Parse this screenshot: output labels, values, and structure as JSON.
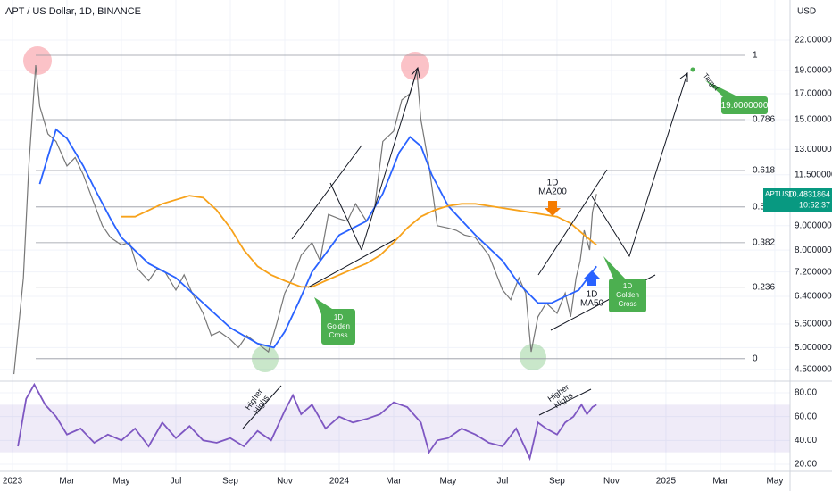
{
  "header": {
    "title": "APT / US Dollar, 1D, BINANCE",
    "currency": "USD"
  },
  "chart_data": [
    {
      "type": "line",
      "log_scale": true,
      "grid": true,
      "xlim": [
        -0.46,
        28.56
      ],
      "ylim": [
        4.29,
        26.7
      ],
      "xticks": [
        {
          "value": 0,
          "label": "2023"
        },
        {
          "value": 2,
          "label": "Mar"
        },
        {
          "value": 4,
          "label": "May"
        },
        {
          "value": 6,
          "label": "Jul"
        },
        {
          "value": 8,
          "label": "Sep"
        },
        {
          "value": 10,
          "label": "Nov"
        },
        {
          "value": 12,
          "label": "2024"
        },
        {
          "value": 14,
          "label": "Mar"
        },
        {
          "value": 16,
          "label": "May"
        },
        {
          "value": 18,
          "label": "Jul"
        },
        {
          "value": 20,
          "label": "Sep"
        },
        {
          "value": 22,
          "label": "Nov"
        },
        {
          "value": 24,
          "label": "2025"
        },
        {
          "value": 26,
          "label": "Mar"
        },
        {
          "value": 28,
          "label": "May"
        }
      ],
      "yticks": [
        {
          "value": 22,
          "label": "22.0000000"
        },
        {
          "value": 19,
          "label": "19.0000000"
        },
        {
          "value": 17,
          "label": "17.0000000"
        },
        {
          "value": 15,
          "label": "15.0000000"
        },
        {
          "value": 13,
          "label": "13.0000000"
        },
        {
          "value": 11.5,
          "label": "11.5000000"
        },
        {
          "value": 9,
          "label": "9.0000000"
        },
        {
          "value": 8,
          "label": "8.0000000"
        },
        {
          "value": 7.2,
          "label": "7.2000000"
        },
        {
          "value": 6.4,
          "label": "6.4000000"
        },
        {
          "value": 5.6,
          "label": "5.6000000"
        },
        {
          "value": 5,
          "label": "5.0000000"
        },
        {
          "value": 4.5,
          "label": "4.5000000"
        }
      ],
      "series": [
        {
          "name": "APTUSD",
          "color": "#777777",
          "x": [
            0.05,
            0.4,
            0.6,
            0.85,
            1.0,
            1.3,
            1.6,
            2.0,
            2.3,
            2.6,
            3.0,
            3.3,
            3.6,
            4.0,
            4.3,
            4.6,
            5.0,
            5.3,
            5.6,
            6.0,
            6.3,
            6.6,
            7.0,
            7.3,
            7.6,
            8.0,
            8.3,
            8.6,
            9.0,
            9.4,
            9.7,
            10.0,
            10.3,
            10.6,
            11.0,
            11.3,
            11.6,
            12.0,
            12.3,
            12.6,
            13.0,
            13.3,
            13.6,
            14.0,
            14.3,
            14.6,
            14.85,
            15.0,
            15.3,
            15.6,
            16.0,
            16.3,
            16.6,
            17.0,
            17.5,
            18.0,
            18.3,
            18.6,
            18.85,
            19.05,
            19.3,
            19.6,
            20.0,
            20.3,
            20.5,
            20.7,
            20.85,
            21.0,
            21.2,
            21.3,
            21.45
          ],
          "values": [
            4.4,
            7,
            12,
            19.5,
            16,
            14,
            13.5,
            12,
            12.5,
            11.5,
            10,
            9,
            8.5,
            8.2,
            8.3,
            7.3,
            6.9,
            7.3,
            7.2,
            6.6,
            7.1,
            6.5,
            5.9,
            5.3,
            5.4,
            5.2,
            5.0,
            5.3,
            5.1,
            4.9,
            5.6,
            6.5,
            7.0,
            7.8,
            8.3,
            7.6,
            9.5,
            9.3,
            9.2,
            10.0,
            9.2,
            9.8,
            13.5,
            14.2,
            16.5,
            17,
            19,
            15,
            12,
            9.0,
            8.9,
            8.8,
            8.6,
            8.5,
            7.8,
            6.6,
            6.3,
            7.0,
            6.5,
            4.9,
            5.8,
            6.2,
            5.9,
            6.5,
            5.8,
            7.0,
            7.6,
            8.8,
            8.0,
            9.6,
            10.4831864
          ]
        },
        {
          "color": "#2962ff",
          "x": [
            1.0,
            1.6,
            2.0,
            2.6,
            3.0,
            3.6,
            4.0,
            5.0,
            6.0,
            7.0,
            8.0,
            9.0,
            9.6,
            10.0,
            10.5,
            11.0,
            11.6,
            12.0,
            13.0,
            13.6,
            14.2,
            14.6,
            15.0,
            15.4,
            16.0,
            16.6,
            17.0,
            18.0,
            18.6,
            19.3,
            19.8,
            20.3,
            20.8,
            21.45
          ],
          "values": [
            11,
            14.3,
            13.7,
            12.0,
            10.8,
            9.3,
            8.5,
            7.5,
            7.0,
            6.2,
            5.5,
            5.1,
            5.0,
            5.4,
            6.2,
            7.2,
            8.0,
            8.6,
            9.2,
            10.5,
            12.8,
            13.8,
            13.2,
            11.5,
            9.9,
            9.1,
            8.6,
            7.6,
            6.8,
            6.2,
            6.2,
            6.4,
            6.6,
            7.4
          ]
        },
        {
          "color": "#f7a21b",
          "x": [
            4.0,
            4.5,
            5.5,
            6.5,
            7.0,
            7.5,
            8.0,
            8.5,
            9.0,
            9.5,
            10.0,
            10.6,
            11.0,
            11.5,
            12.0,
            12.5,
            13.0,
            13.5,
            14.0,
            14.5,
            15.0,
            15.5,
            16.0,
            16.5,
            17.0,
            17.5,
            18.0,
            19.0,
            20.0,
            20.5,
            21.0,
            21.45
          ],
          "values": [
            9.4,
            9.4,
            10.0,
            10.4,
            10.3,
            9.7,
            8.9,
            8.0,
            7.4,
            7.1,
            6.9,
            6.7,
            6.7,
            6.9,
            7.1,
            7.3,
            7.5,
            7.8,
            8.3,
            8.9,
            9.4,
            9.7,
            9.9,
            10.0,
            10.0,
            9.9,
            9.8,
            9.6,
            9.4,
            9.1,
            8.6,
            8.2
          ]
        }
      ],
      "fib_levels": [
        {
          "level": 1,
          "price": 20.45
        },
        {
          "level": 0.786,
          "price": 15.0
        },
        {
          "level": 0.618,
          "price": 11.74
        },
        {
          "level": 0.5,
          "price": 9.85
        },
        {
          "level": 0.382,
          "price": 8.29
        },
        {
          "level": 0.236,
          "price": 6.69
        },
        {
          "level": 0,
          "price": 4.74
        }
      ],
      "last_price_time": "10:52:37",
      "target": {
        "value": 19,
        "label": "19.0000000",
        "text": "Target"
      },
      "golden_cross_1": [
        "1D",
        "Golden",
        "Cross"
      ],
      "golden_cross_2": [
        "1D",
        "Golden",
        "Cross"
      ],
      "ma200_label": [
        "1D",
        "MA200"
      ],
      "ma50_label": [
        "1D",
        "MA50"
      ]
    },
    {
      "type": "line",
      "xlim": [
        -0.46,
        28.56
      ],
      "ylim": [
        14,
        89
      ],
      "band": [
        30,
        70
      ],
      "yticks": [
        {
          "value": 80,
          "label": "80.00"
        },
        {
          "value": 60,
          "label": "60.00"
        },
        {
          "value": 40,
          "label": "40.00"
        },
        {
          "value": 20,
          "label": "20.00"
        }
      ],
      "series": [
        {
          "color": "#7e57c2",
          "x": [
            0.2,
            0.5,
            0.8,
            1.2,
            1.6,
            2,
            2.5,
            3,
            3.5,
            4,
            4.5,
            5,
            5.5,
            6,
            6.5,
            7,
            7.5,
            8,
            8.5,
            9,
            9.5,
            10,
            10.3,
            10.6,
            11,
            11.5,
            12,
            12.5,
            13,
            13.5,
            14,
            14.5,
            15,
            15.3,
            15.6,
            16,
            16.5,
            17,
            17.5,
            18,
            18.5,
            19,
            19.3,
            19.6,
            20,
            20.3,
            20.6,
            20.9,
            21.1,
            21.3,
            21.45
          ],
          "values": [
            35,
            75,
            87,
            70,
            60,
            45,
            50,
            38,
            45,
            40,
            50,
            35,
            55,
            42,
            52,
            40,
            38,
            42,
            35,
            48,
            40,
            65,
            78,
            62,
            70,
            50,
            60,
            55,
            58,
            62,
            72,
            68,
            55,
            30,
            40,
            42,
            50,
            45,
            38,
            35,
            50,
            25,
            55,
            50,
            45,
            55,
            60,
            70,
            62,
            68,
            70
          ]
        }
      ],
      "annotation_1": [
        "Higher",
        "Highs"
      ],
      "annotation_2": [
        "Higher",
        "Highs"
      ]
    }
  ]
}
